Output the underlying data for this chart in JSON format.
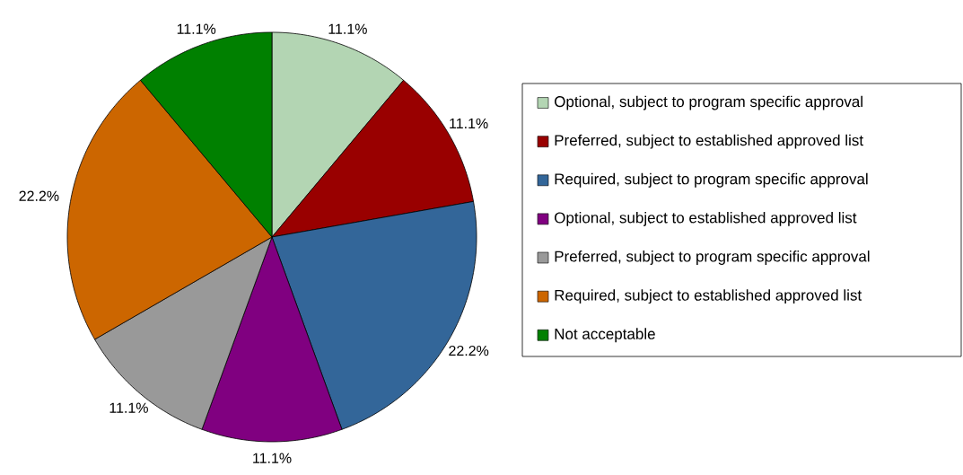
{
  "chart_data": {
    "type": "pie",
    "categories": [
      "Optional, subject to program specific approval",
      "Preferred, subject to established approved list",
      "Required, subject to program specific approval",
      "Optional, subject to established approved list",
      "Preferred, subject to program specific approval",
      "Required, subject to established approved list",
      "Not acceptable"
    ],
    "values": [
      11.1,
      11.1,
      22.2,
      11.1,
      11.1,
      22.2,
      11.1
    ],
    "value_labels": [
      "11.1%",
      "11.1%",
      "22.2%",
      "11.1%",
      "11.1%",
      "22.2%",
      "11.1%"
    ],
    "colors": [
      "#b3d5b3",
      "#990000",
      "#336699",
      "#800080",
      "#999999",
      "#cc6600",
      "#008000"
    ],
    "legend": "right"
  }
}
